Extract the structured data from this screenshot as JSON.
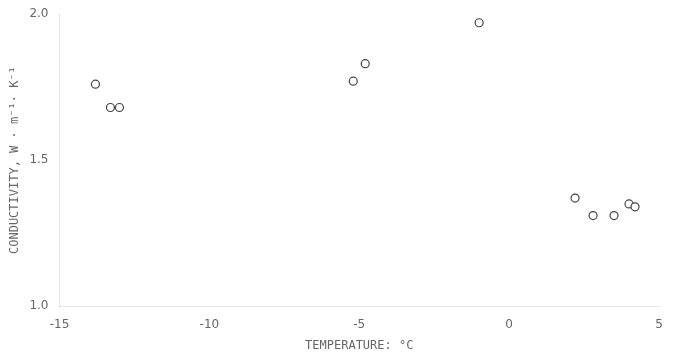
{
  "chart_data": {
    "type": "scatter",
    "x": [
      -13.8,
      -13.3,
      -13.0,
      -5.2,
      -4.8,
      -1.0,
      2.2,
      2.8,
      3.5,
      4.0,
      4.2
    ],
    "values": [
      1.76,
      1.68,
      1.68,
      1.77,
      1.83,
      1.97,
      1.37,
      1.31,
      1.31,
      1.35,
      1.34
    ],
    "xlabel": "TEMPERATURE: °C",
    "ylabel": "CONDUCTIVITY, W · m⁻¹· K⁻¹",
    "xlim": [
      -15,
      5
    ],
    "ylim": [
      1.0,
      2.0
    ],
    "xticks": [
      -15,
      -10,
      -5,
      0,
      5
    ],
    "yticks": [
      {
        "value": 1.0,
        "label": "1.0"
      },
      1.5,
      {
        "value": 2.0,
        "label": "2.0"
      }
    ],
    "color": "#444444",
    "marker": "circle",
    "grid": false
  }
}
